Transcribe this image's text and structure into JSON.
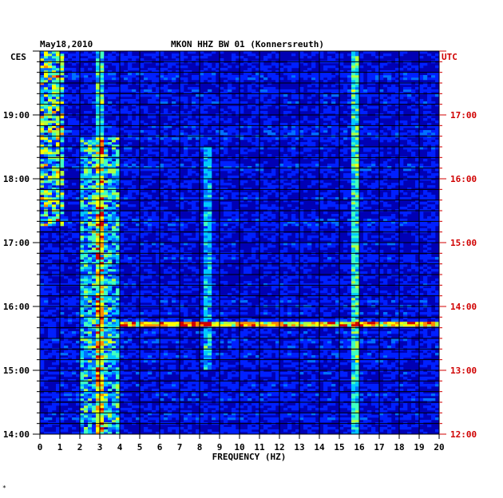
{
  "header": {
    "date": "May18,2010",
    "station_title": "MKON HHZ BW 01 (Konnersreuth)",
    "left_timezone": "CES",
    "right_timezone": "UTC"
  },
  "footer": {
    "mark": "*"
  },
  "colors": {
    "background": "#0000b4",
    "grid": "#000000",
    "left_text": "#000000",
    "right_text": "#d00000",
    "palette": [
      "#00008c",
      "#0000d0",
      "#0020ff",
      "#0070ff",
      "#00c8ff",
      "#40ffc0",
      "#b0ff40",
      "#ffff00",
      "#ff8c00",
      "#d00000"
    ]
  },
  "chart_data": {
    "type": "heatmap",
    "title": "MKON HHZ BW 01 (Konnersreuth)",
    "subtitle": "May18,2010",
    "xlabel": "FREQUENCY (HZ)",
    "ylabel_left": "CES",
    "ylabel_right": "UTC",
    "xlim": [
      0,
      20
    ],
    "x_ticks": [
      "0",
      "1",
      "2",
      "3",
      "4",
      "5",
      "6",
      "7",
      "8",
      "9",
      "10",
      "11",
      "12",
      "13",
      "14",
      "15",
      "16",
      "17",
      "18",
      "19",
      "20"
    ],
    "y_range_hours_ces": [
      14,
      20
    ],
    "y_ticks_left": [
      "19:00",
      "18:00",
      "17:00",
      "16:00",
      "15:00",
      "14:00"
    ],
    "y_ticks_right": [
      "17:00",
      "16:00",
      "15:00",
      "14:00",
      "13:00",
      "12:00"
    ],
    "grid": true,
    "colorscale": "jet",
    "notable_features": [
      {
        "type": "band",
        "freq_hz": [
          0,
          1.2
        ],
        "time_ces": [
          "17:15",
          "20:00"
        ],
        "intensity": "high"
      },
      {
        "type": "band",
        "freq_hz": [
          2,
          4
        ],
        "time_ces": [
          "14:00",
          "18:40"
        ],
        "intensity": "medium-high"
      },
      {
        "type": "line",
        "freq_hz": 3.05,
        "time_ces": [
          "14:00",
          "20:00"
        ],
        "intensity": "medium"
      },
      {
        "type": "line",
        "freq_hz": 15.8,
        "time_ces": [
          "14:00",
          "20:00"
        ],
        "intensity": "medium"
      },
      {
        "type": "line",
        "freq_hz": 8.4,
        "time_ces": [
          "15:00",
          "18:30"
        ],
        "intensity": "low-medium"
      },
      {
        "type": "event",
        "freq_hz": [
          4,
          20
        ],
        "time_ces": "15:43",
        "intensity": "high"
      }
    ]
  }
}
